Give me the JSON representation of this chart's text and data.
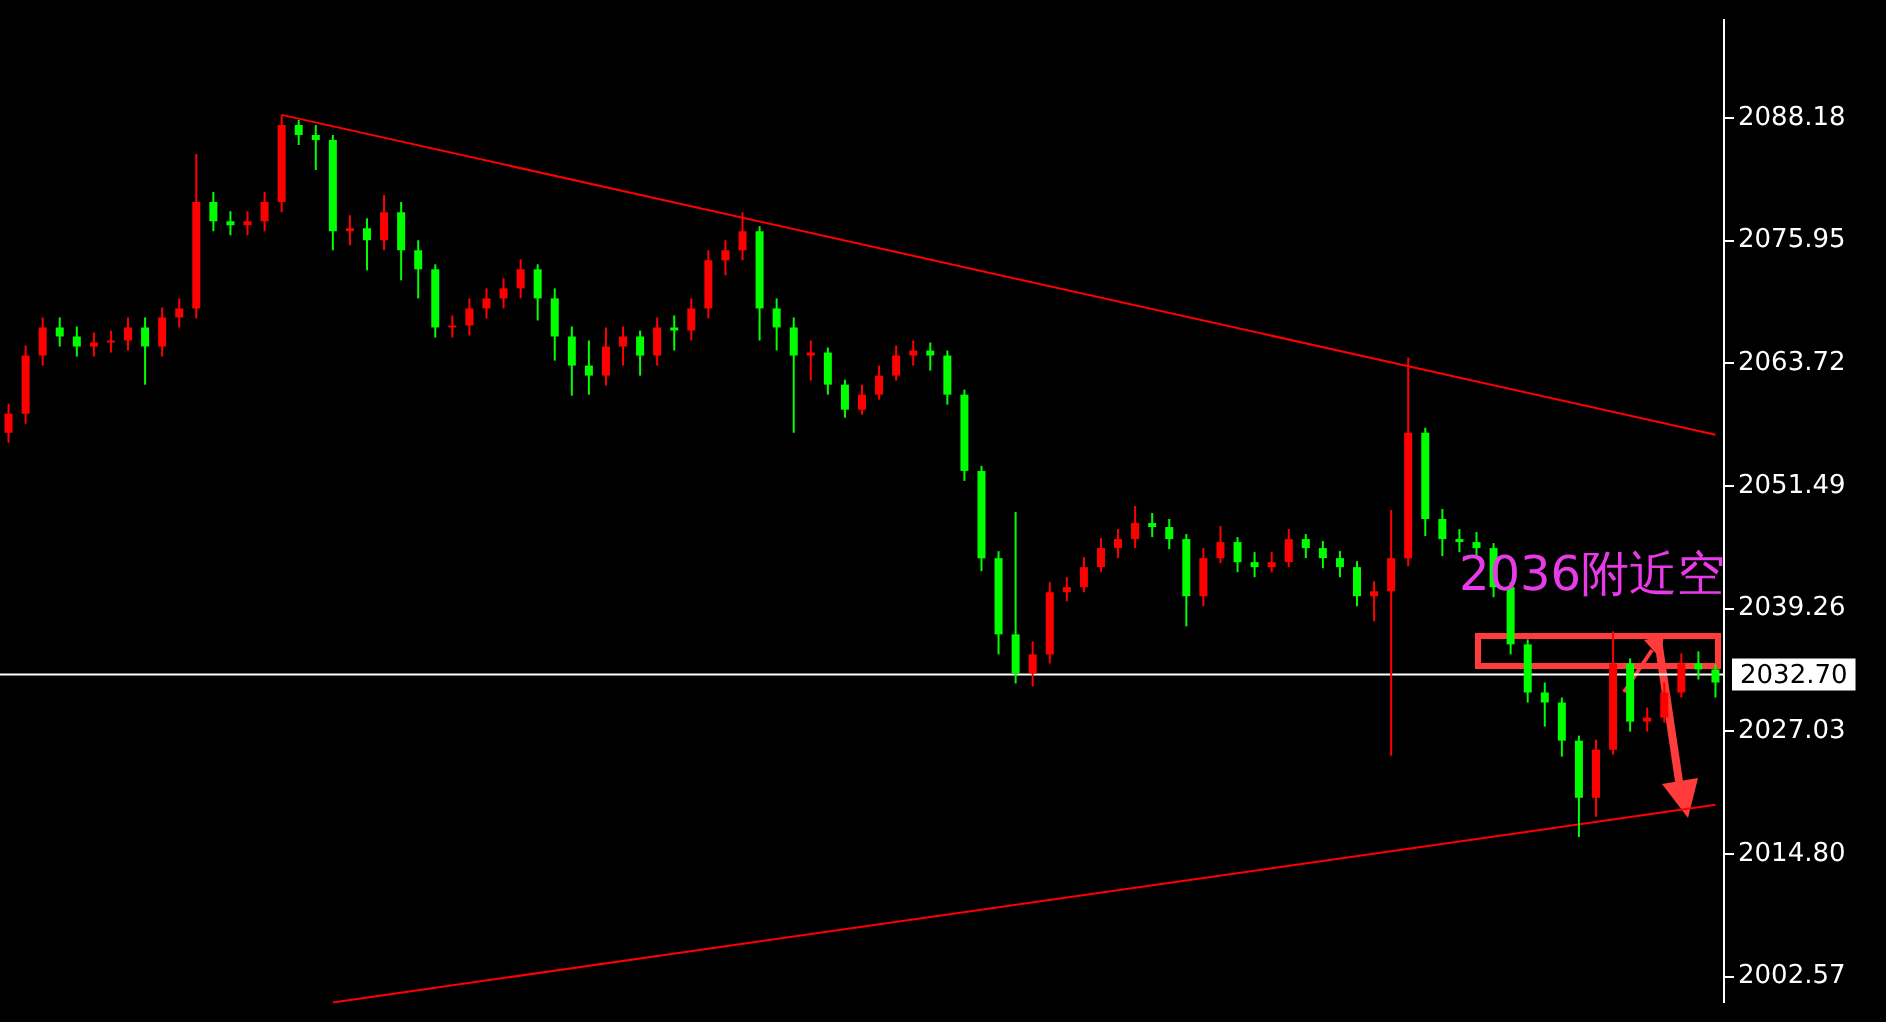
{
  "chart_data": {
    "type": "candlestick",
    "categories": [
      null,
      null,
      null,
      null,
      null,
      null,
      null,
      null,
      null,
      null,
      null,
      null,
      null,
      null,
      null,
      null,
      null,
      null,
      null,
      null,
      null,
      null,
      null,
      null,
      null,
      null,
      null,
      null,
      null,
      null,
      null,
      null,
      null,
      null,
      null,
      null,
      null,
      null,
      null,
      null,
      null,
      null,
      null,
      null,
      null,
      null,
      null,
      null,
      null,
      null,
      null,
      null,
      null,
      null,
      null,
      null,
      null,
      null,
      null,
      null,
      null,
      null,
      null,
      null,
      null,
      null,
      null,
      null,
      null,
      null,
      null,
      null,
      null,
      null,
      null,
      null,
      null,
      null,
      null,
      null,
      null,
      null,
      null,
      null,
      null,
      null,
      null,
      null,
      null,
      null,
      null,
      null,
      null,
      null,
      null,
      null,
      null,
      null,
      null,
      null,
      null
    ],
    "ohlc": [
      [
        2056.8,
        2059.7,
        2055.8,
        2058.7
      ],
      [
        2058.7,
        2065.5,
        2057.7,
        2064.5
      ],
      [
        2064.5,
        2068.3,
        2063.5,
        2067.3
      ],
      [
        2067.3,
        2068.3,
        2065.4,
        2066.4
      ],
      [
        2066.4,
        2067.4,
        2064.4,
        2065.4
      ],
      [
        2065.4,
        2066.8,
        2064.4,
        2065.8
      ],
      [
        2065.8,
        2067.0,
        2064.8,
        2066.0
      ],
      [
        2066.0,
        2068.3,
        2065.0,
        2067.3
      ],
      [
        2067.3,
        2068.3,
        2061.6,
        2065.4
      ],
      [
        2065.4,
        2069.3,
        2064.4,
        2068.3
      ],
      [
        2068.3,
        2070.2,
        2067.3,
        2069.2
      ],
      [
        2069.2,
        2084.6,
        2068.2,
        2079.8
      ],
      [
        2079.8,
        2080.8,
        2076.9,
        2077.9
      ],
      [
        2077.9,
        2078.9,
        2076.5,
        2077.5
      ],
      [
        2077.5,
        2078.9,
        2076.5,
        2077.9
      ],
      [
        2077.9,
        2080.8,
        2076.9,
        2079.8
      ],
      [
        2079.8,
        2088.5,
        2078.8,
        2087.5
      ],
      [
        2087.5,
        2088.0,
        2085.5,
        2086.5
      ],
      [
        2086.5,
        2087.5,
        2083.0,
        2086.0
      ],
      [
        2086.0,
        2086.5,
        2075.0,
        2076.9
      ],
      [
        2076.9,
        2078.5,
        2075.5,
        2077.2
      ],
      [
        2077.2,
        2078.2,
        2073.0,
        2076.0
      ],
      [
        2076.0,
        2080.5,
        2075.0,
        2078.8
      ],
      [
        2078.8,
        2079.8,
        2072.0,
        2075.0
      ],
      [
        2075.0,
        2076.0,
        2070.2,
        2073.1
      ],
      [
        2073.1,
        2073.6,
        2066.3,
        2067.3
      ],
      [
        2067.3,
        2068.5,
        2066.3,
        2067.5
      ],
      [
        2067.5,
        2070.2,
        2066.5,
        2069.2
      ],
      [
        2069.2,
        2071.2,
        2068.2,
        2070.2
      ],
      [
        2070.2,
        2072.2,
        2069.2,
        2071.2
      ],
      [
        2071.2,
        2074.1,
        2070.2,
        2073.1
      ],
      [
        2073.1,
        2073.6,
        2068.0,
        2070.2
      ],
      [
        2070.2,
        2071.2,
        2064.0,
        2066.4
      ],
      [
        2066.4,
        2067.4,
        2060.5,
        2063.5
      ],
      [
        2063.5,
        2066.0,
        2060.6,
        2062.5
      ],
      [
        2062.5,
        2067.3,
        2061.5,
        2065.4
      ],
      [
        2065.4,
        2067.4,
        2063.5,
        2066.4
      ],
      [
        2066.4,
        2067.0,
        2062.5,
        2064.5
      ],
      [
        2064.5,
        2068.3,
        2063.5,
        2067.3
      ],
      [
        2067.3,
        2068.5,
        2065.0,
        2067.0
      ],
      [
        2067.0,
        2070.2,
        2066.0,
        2069.2
      ],
      [
        2069.2,
        2075.0,
        2068.2,
        2074.0
      ],
      [
        2074.0,
        2076.0,
        2072.5,
        2075.0
      ],
      [
        2075.0,
        2078.8,
        2074.0,
        2076.9
      ],
      [
        2076.9,
        2077.4,
        2066.0,
        2069.2
      ],
      [
        2069.2,
        2070.2,
        2065.0,
        2067.3
      ],
      [
        2067.3,
        2068.3,
        2056.8,
        2064.5
      ],
      [
        2064.5,
        2066.0,
        2062.0,
        2064.8
      ],
      [
        2064.8,
        2065.3,
        2060.6,
        2061.6
      ],
      [
        2061.6,
        2062.1,
        2058.3,
        2059.1
      ],
      [
        2059.1,
        2061.6,
        2058.6,
        2060.6
      ],
      [
        2060.6,
        2063.5,
        2060.1,
        2062.5
      ],
      [
        2062.5,
        2065.5,
        2062.0,
        2064.5
      ],
      [
        2064.5,
        2066.0,
        2063.5,
        2065.0
      ],
      [
        2065.0,
        2065.8,
        2063.0,
        2064.5
      ],
      [
        2064.5,
        2065.0,
        2059.6,
        2060.6
      ],
      [
        2060.6,
        2061.1,
        2052.0,
        2053.0
      ],
      [
        2053.0,
        2053.5,
        2043.0,
        2044.3
      ],
      [
        2044.3,
        2045.0,
        2034.7,
        2036.7
      ],
      [
        2036.7,
        2048.9,
        2031.8,
        2032.8
      ],
      [
        2032.8,
        2036.0,
        2031.5,
        2034.7
      ],
      [
        2034.7,
        2041.9,
        2033.8,
        2040.9
      ],
      [
        2040.9,
        2042.4,
        2040.0,
        2041.4
      ],
      [
        2041.4,
        2044.4,
        2040.9,
        2043.4
      ],
      [
        2043.4,
        2046.3,
        2042.9,
        2045.3
      ],
      [
        2045.3,
        2047.2,
        2044.3,
        2046.2
      ],
      [
        2046.2,
        2049.5,
        2045.3,
        2047.8
      ],
      [
        2047.8,
        2048.8,
        2046.4,
        2047.4
      ],
      [
        2047.4,
        2048.2,
        2045.2,
        2046.2
      ],
      [
        2046.2,
        2046.7,
        2037.5,
        2040.5
      ],
      [
        2040.5,
        2045.3,
        2039.5,
        2044.3
      ],
      [
        2044.3,
        2047.5,
        2043.8,
        2045.9
      ],
      [
        2045.9,
        2046.4,
        2042.9,
        2043.9
      ],
      [
        2043.9,
        2044.9,
        2042.4,
        2043.4
      ],
      [
        2043.4,
        2044.9,
        2042.9,
        2043.9
      ],
      [
        2043.9,
        2047.2,
        2043.4,
        2046.2
      ],
      [
        2046.2,
        2046.7,
        2044.3,
        2045.3
      ],
      [
        2045.3,
        2046.0,
        2043.3,
        2044.3
      ],
      [
        2044.3,
        2045.0,
        2042.4,
        2043.4
      ],
      [
        2043.4,
        2044.0,
        2039.5,
        2040.5
      ],
      [
        2040.5,
        2042.0,
        2038.0,
        2041.0
      ],
      [
        2041.0,
        2049.1,
        2024.6,
        2044.3
      ],
      [
        2044.3,
        2064.3,
        2043.5,
        2056.8
      ],
      [
        2056.8,
        2057.3,
        2046.5,
        2048.2
      ],
      [
        2048.2,
        2049.2,
        2044.5,
        2046.2
      ],
      [
        2046.2,
        2047.2,
        2044.9,
        2045.9
      ],
      [
        2045.9,
        2046.9,
        2044.3,
        2045.3
      ],
      [
        2045.3,
        2045.8,
        2040.4,
        2041.4
      ],
      [
        2041.4,
        2041.9,
        2034.7,
        2035.7
      ],
      [
        2035.7,
        2036.2,
        2029.9,
        2030.9
      ],
      [
        2030.9,
        2031.9,
        2027.5,
        2029.9
      ],
      [
        2029.9,
        2030.4,
        2024.5,
        2026.1
      ],
      [
        2026.1,
        2026.6,
        2016.5,
        2020.4
      ],
      [
        2020.4,
        2026.2,
        2018.5,
        2025.2
      ],
      [
        2025.2,
        2037.0,
        2024.7,
        2033.8
      ],
      [
        2033.8,
        2034.3,
        2027.0,
        2028.0
      ],
      [
        2028.0,
        2029.4,
        2027.0,
        2028.4
      ],
      [
        2028.4,
        2031.9,
        2027.9,
        2030.9
      ],
      [
        2030.9,
        2034.8,
        2030.4,
        2033.8
      ],
      [
        2033.8,
        2035.0,
        2032.2,
        2033.2
      ],
      [
        2033.2,
        2033.7,
        2030.4,
        2031.9
      ]
    ],
    "colors": [
      "#ff0000",
      "#ff0000",
      "#ff0000",
      "#00ff00",
      "#00ff00",
      "#ff0000",
      "#ff0000",
      "#ff0000",
      "#00ff00",
      "#ff0000",
      "#ff0000",
      "#ff0000",
      "#00ff00",
      "#00ff00",
      "#ff0000",
      "#ff0000",
      "#ff0000",
      "#00ff00",
      "#00ff00",
      "#00ff00",
      "#ff0000",
      "#00ff00",
      "#ff0000",
      "#00ff00",
      "#00ff00",
      "#00ff00",
      "#ff0000",
      "#ff0000",
      "#ff0000",
      "#ff0000",
      "#ff0000",
      "#00ff00",
      "#00ff00",
      "#00ff00",
      "#00ff00",
      "#ff0000",
      "#ff0000",
      "#00ff00",
      "#ff0000",
      "#00ff00",
      "#ff0000",
      "#ff0000",
      "#ff0000",
      "#ff0000",
      "#00ff00",
      "#00ff00",
      "#00ff00",
      "#ff0000",
      "#00ff00",
      "#00ff00",
      "#ff0000",
      "#ff0000",
      "#ff0000",
      "#ff0000",
      "#00ff00",
      "#00ff00",
      "#00ff00",
      "#00ff00",
      "#00ff00",
      "#00ff00",
      "#ff0000",
      "#ff0000",
      "#ff0000",
      "#ff0000",
      "#ff0000",
      "#ff0000",
      "#ff0000",
      "#00ff00",
      "#00ff00",
      "#00ff00",
      "#ff0000",
      "#ff0000",
      "#00ff00",
      "#00ff00",
      "#ff0000",
      "#ff0000",
      "#00ff00",
      "#00ff00",
      "#00ff00",
      "#00ff00",
      "#ff0000",
      "#ff0000",
      "#ff0000",
      "#00ff00",
      "#00ff00",
      "#00ff00",
      "#00ff00",
      "#00ff00",
      "#00ff00",
      "#00ff00",
      "#00ff00",
      "#00ff00",
      "#00ff00",
      "#ff0000",
      "#ff0000",
      "#00ff00",
      "#ff0000",
      "#ff0000",
      "#ff0000",
      "#00ff00",
      "#00ff00"
    ],
    "series": [
      {
        "type": "line",
        "values": [
          null,
          null,
          null,
          null,
          null,
          null,
          null,
          null,
          null,
          null,
          null,
          null,
          null,
          null,
          null,
          null,
          2088.5,
          null,
          null,
          null,
          null,
          null,
          null,
          null,
          null,
          null,
          null,
          null,
          null,
          null,
          null,
          null,
          null,
          null,
          null,
          null,
          null,
          null,
          null,
          null,
          null,
          null,
          null,
          null,
          null,
          null,
          null,
          null,
          null,
          null,
          null,
          null,
          null,
          null,
          null,
          null,
          null,
          null,
          null,
          null,
          null,
          null,
          null,
          null,
          null,
          null,
          null,
          null,
          null,
          null,
          null,
          null,
          null,
          null,
          null,
          null,
          null,
          null,
          null,
          null,
          null,
          null,
          null,
          null,
          null,
          null,
          null,
          null,
          null,
          null,
          null,
          null,
          null,
          null,
          null,
          null,
          null,
          null,
          null,
          null,
          2056.6
        ],
        "color": "#ff0000"
      },
      {
        "type": "line",
        "values": [
          null,
          null,
          null,
          null,
          null,
          null,
          null,
          null,
          null,
          null,
          null,
          null,
          null,
          null,
          null,
          null,
          null,
          null,
          null,
          2000.0,
          null,
          null,
          null,
          null,
          null,
          null,
          null,
          null,
          null,
          null,
          null,
          null,
          null,
          null,
          null,
          null,
          null,
          null,
          null,
          null,
          null,
          null,
          null,
          null,
          null,
          null,
          null,
          null,
          null,
          null,
          null,
          null,
          null,
          null,
          null,
          null,
          null,
          null,
          null,
          null,
          null,
          null,
          null,
          null,
          null,
          null,
          null,
          null,
          null,
          null,
          null,
          null,
          null,
          null,
          null,
          null,
          null,
          null,
          null,
          null,
          null,
          null,
          null,
          null,
          null,
          null,
          null,
          null,
          null,
          null,
          null,
          null,
          null,
          null,
          null,
          null,
          null,
          null,
          null,
          null,
          2019.7
        ],
        "color": "#ff0000"
      }
    ],
    "ylim": [
      2000.0,
      2098.0
    ],
    "yticks": [
      2002.57,
      {
        "value": 2014.8,
        "label": "2014.80"
      },
      2027.03,
      2039.26,
      2051.49,
      2063.72,
      2075.95,
      2088.18
    ],
    "tick_labels": "y",
    "ref_lines": [
      {
        "axis": "y",
        "value": 2032.7,
        "label": "2032.70",
        "color": "#ffffff"
      }
    ],
    "annotations": [
      "2036附近空"
    ],
    "grid": false,
    "legend": false
  }
}
